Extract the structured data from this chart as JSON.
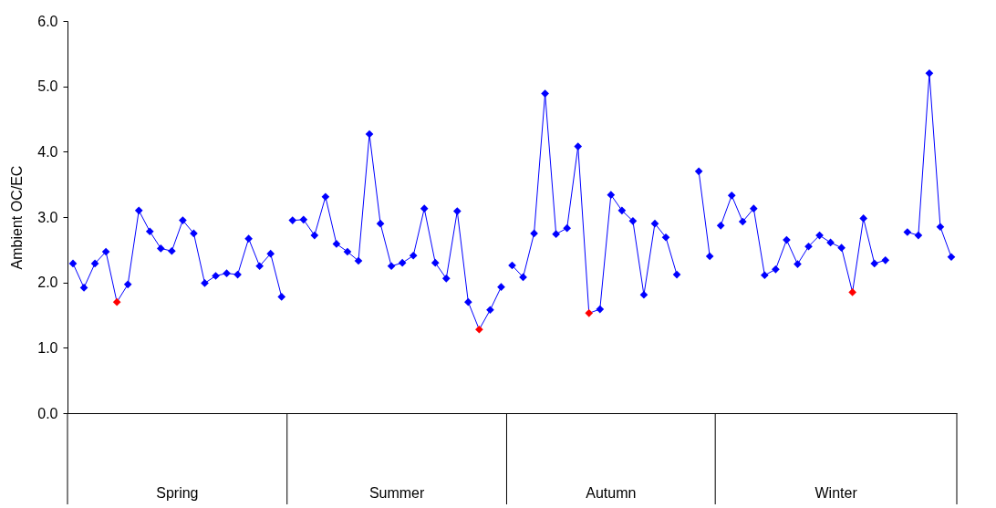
{
  "chart_data": {
    "type": "line",
    "ylabel": "Ambient OC/EC",
    "categories": [
      null,
      null,
      null,
      null,
      null,
      null,
      null,
      null,
      null,
      null,
      null,
      null,
      null,
      null,
      null,
      null,
      null,
      null,
      null,
      null,
      null,
      null,
      null,
      null,
      null,
      null,
      null,
      null,
      null,
      null,
      null,
      null,
      null,
      null,
      null,
      null,
      null,
      null,
      null,
      null,
      null,
      null,
      null,
      null,
      null,
      null,
      null,
      null,
      null,
      null,
      null,
      null,
      null,
      null,
      null,
      null,
      null,
      null,
      null,
      null,
      null,
      null,
      null,
      null,
      null,
      null,
      null,
      null,
      null,
      null,
      null,
      null,
      null,
      null,
      null,
      null,
      null,
      null,
      null,
      null,
      null
    ],
    "series": [
      {
        "color": "#0000ff",
        "values": [
          2.29,
          1.92,
          2.29,
          2.47,
          1.7,
          1.97,
          3.1,
          2.78,
          2.52,
          2.48,
          2.95,
          2.75,
          1.99,
          2.1,
          2.14,
          2.12,
          2.67,
          2.25,
          2.44,
          1.78,
          null,
          null,
          null,
          null,
          null,
          null,
          null,
          null,
          null,
          null,
          null,
          null,
          null,
          null,
          null,
          null,
          null,
          null,
          null,
          null,
          null,
          null,
          null,
          null,
          null,
          null,
          null,
          null,
          null,
          null,
          null,
          null,
          null,
          null,
          null,
          null,
          null,
          null,
          null,
          null,
          null,
          null,
          null,
          null,
          null,
          null,
          null,
          null,
          null,
          null,
          null,
          null,
          null,
          null,
          null,
          null,
          null,
          null,
          null,
          null,
          null
        ],
        "colors": [
          "#0000ff",
          "#0000ff",
          "#0000ff",
          "#0000ff",
          "#ff0000",
          "#0000ff",
          "#0000ff",
          "#0000ff",
          "#0000ff",
          "#0000ff",
          "#0000ff",
          "#0000ff",
          "#0000ff",
          "#0000ff",
          "#0000ff",
          "#0000ff",
          "#0000ff",
          "#0000ff",
          "#0000ff",
          "#0000ff",
          null,
          null,
          null,
          null,
          null,
          null,
          null,
          null,
          null,
          null,
          null,
          null,
          null,
          null,
          null,
          null,
          null,
          null,
          null,
          null,
          null,
          null,
          null,
          null,
          null,
          null,
          null,
          null,
          null,
          null,
          null,
          null,
          null,
          null,
          null,
          null,
          null,
          null,
          null,
          null,
          null,
          null,
          null,
          null,
          null,
          null,
          null,
          null,
          null,
          null,
          null,
          null,
          null,
          null,
          null,
          null,
          null,
          null,
          null,
          null,
          null
        ]
      },
      {
        "color": "#0000ff",
        "values": [
          null,
          null,
          null,
          null,
          null,
          null,
          null,
          null,
          null,
          null,
          null,
          null,
          null,
          null,
          null,
          null,
          null,
          null,
          null,
          null,
          2.95,
          2.96,
          2.72,
          3.31,
          2.59,
          2.47,
          2.33,
          4.27,
          2.9,
          2.25,
          2.3,
          2.41,
          3.13,
          2.3,
          2.06,
          3.09,
          1.7,
          1.28,
          1.58,
          1.93,
          null,
          null,
          null,
          null,
          null,
          null,
          null,
          null,
          null,
          null,
          null,
          null,
          null,
          null,
          null,
          null,
          null,
          null,
          null,
          null,
          null,
          null,
          null,
          null,
          null,
          null,
          null,
          null,
          null,
          null,
          null,
          null,
          null,
          null,
          null,
          null,
          null,
          null,
          null,
          null,
          null
        ],
        "colors": [
          null,
          null,
          null,
          null,
          null,
          null,
          null,
          null,
          null,
          null,
          null,
          null,
          null,
          null,
          null,
          null,
          null,
          null,
          null,
          null,
          "#0000ff",
          "#0000ff",
          "#0000ff",
          "#0000ff",
          "#0000ff",
          "#0000ff",
          "#0000ff",
          "#0000ff",
          "#0000ff",
          "#0000ff",
          "#0000ff",
          "#0000ff",
          "#0000ff",
          "#0000ff",
          "#0000ff",
          "#0000ff",
          "#0000ff",
          "#ff0000",
          "#0000ff",
          "#0000ff",
          null,
          null,
          null,
          null,
          null,
          null,
          null,
          null,
          null,
          null,
          null,
          null,
          null,
          null,
          null,
          null,
          null,
          null,
          null,
          null,
          null,
          null,
          null,
          null,
          null,
          null,
          null,
          null,
          null,
          null,
          null,
          null,
          null,
          null,
          null,
          null,
          null,
          null,
          null,
          null,
          null
        ]
      },
      {
        "color": "#0000ff",
        "values": [
          null,
          null,
          null,
          null,
          null,
          null,
          null,
          null,
          null,
          null,
          null,
          null,
          null,
          null,
          null,
          null,
          null,
          null,
          null,
          null,
          null,
          null,
          null,
          null,
          null,
          null,
          null,
          null,
          null,
          null,
          null,
          null,
          null,
          null,
          null,
          null,
          null,
          null,
          null,
          null,
          2.26,
          2.08,
          2.75,
          4.89,
          2.74,
          2.83,
          4.08,
          1.53,
          1.59,
          3.34,
          3.1,
          2.94,
          1.81,
          2.9,
          2.69,
          2.12,
          null,
          3.7,
          2.4,
          null,
          null,
          null,
          null,
          null,
          null,
          null,
          null,
          null,
          null,
          null,
          null,
          null,
          null,
          null,
          null,
          null,
          null,
          null,
          null,
          null,
          null
        ],
        "colors": [
          null,
          null,
          null,
          null,
          null,
          null,
          null,
          null,
          null,
          null,
          null,
          null,
          null,
          null,
          null,
          null,
          null,
          null,
          null,
          null,
          null,
          null,
          null,
          null,
          null,
          null,
          null,
          null,
          null,
          null,
          null,
          null,
          null,
          null,
          null,
          null,
          null,
          null,
          null,
          null,
          "#0000ff",
          "#0000ff",
          "#0000ff",
          "#0000ff",
          "#0000ff",
          "#0000ff",
          "#0000ff",
          "#ff0000",
          "#0000ff",
          "#0000ff",
          "#0000ff",
          "#0000ff",
          "#0000ff",
          "#0000ff",
          "#0000ff",
          "#0000ff",
          null,
          "#0000ff",
          "#0000ff",
          null,
          null,
          null,
          null,
          null,
          null,
          null,
          null,
          null,
          null,
          null,
          null,
          null,
          null,
          null,
          null,
          null,
          null,
          null,
          null,
          null,
          null
        ]
      },
      {
        "color": "#0000ff",
        "values": [
          null,
          null,
          null,
          null,
          null,
          null,
          null,
          null,
          null,
          null,
          null,
          null,
          null,
          null,
          null,
          null,
          null,
          null,
          null,
          null,
          null,
          null,
          null,
          null,
          null,
          null,
          null,
          null,
          null,
          null,
          null,
          null,
          null,
          null,
          null,
          null,
          null,
          null,
          null,
          null,
          null,
          null,
          null,
          null,
          null,
          null,
          null,
          null,
          null,
          null,
          null,
          null,
          null,
          null,
          null,
          null,
          null,
          null,
          null,
          2.87,
          3.33,
          2.93,
          3.13,
          2.11,
          2.2,
          2.65,
          2.28,
          2.55,
          2.72,
          2.61,
          2.53,
          1.85,
          2.98,
          2.29,
          2.34,
          null,
          2.77,
          2.72,
          5.2,
          2.85,
          2.39
        ],
        "colors": [
          null,
          null,
          null,
          null,
          null,
          null,
          null,
          null,
          null,
          null,
          null,
          null,
          null,
          null,
          null,
          null,
          null,
          null,
          null,
          null,
          null,
          null,
          null,
          null,
          null,
          null,
          null,
          null,
          null,
          null,
          null,
          null,
          null,
          null,
          null,
          null,
          null,
          null,
          null,
          null,
          null,
          null,
          null,
          null,
          null,
          null,
          null,
          null,
          null,
          null,
          null,
          null,
          null,
          null,
          null,
          null,
          null,
          null,
          null,
          "#0000ff",
          "#0000ff",
          "#0000ff",
          "#0000ff",
          "#0000ff",
          "#0000ff",
          "#0000ff",
          "#0000ff",
          "#0000ff",
          "#0000ff",
          "#0000ff",
          "#0000ff",
          "#ff0000",
          "#0000ff",
          "#0000ff",
          "#0000ff",
          null,
          "#0000ff",
          "#0000ff",
          "#0000ff",
          "#0000ff",
          "#0000ff"
        ]
      }
    ],
    "annotations": [
      "Spring",
      "Summer",
      "Autumn",
      "Winter"
    ],
    "ylim": [
      0,
      6
    ],
    "yticks": [
      {
        "value": 0,
        "label": "0.0"
      },
      {
        "value": 1,
        "label": "1.0"
      },
      {
        "value": 2,
        "label": "2.0"
      },
      {
        "value": 3,
        "label": "3.0"
      },
      {
        "value": 4,
        "label": "4.0"
      },
      {
        "value": 5,
        "label": "5.0"
      },
      {
        "value": 6,
        "label": "6.0"
      }
    ],
    "marker": "diamond",
    "line_style": "solid"
  }
}
